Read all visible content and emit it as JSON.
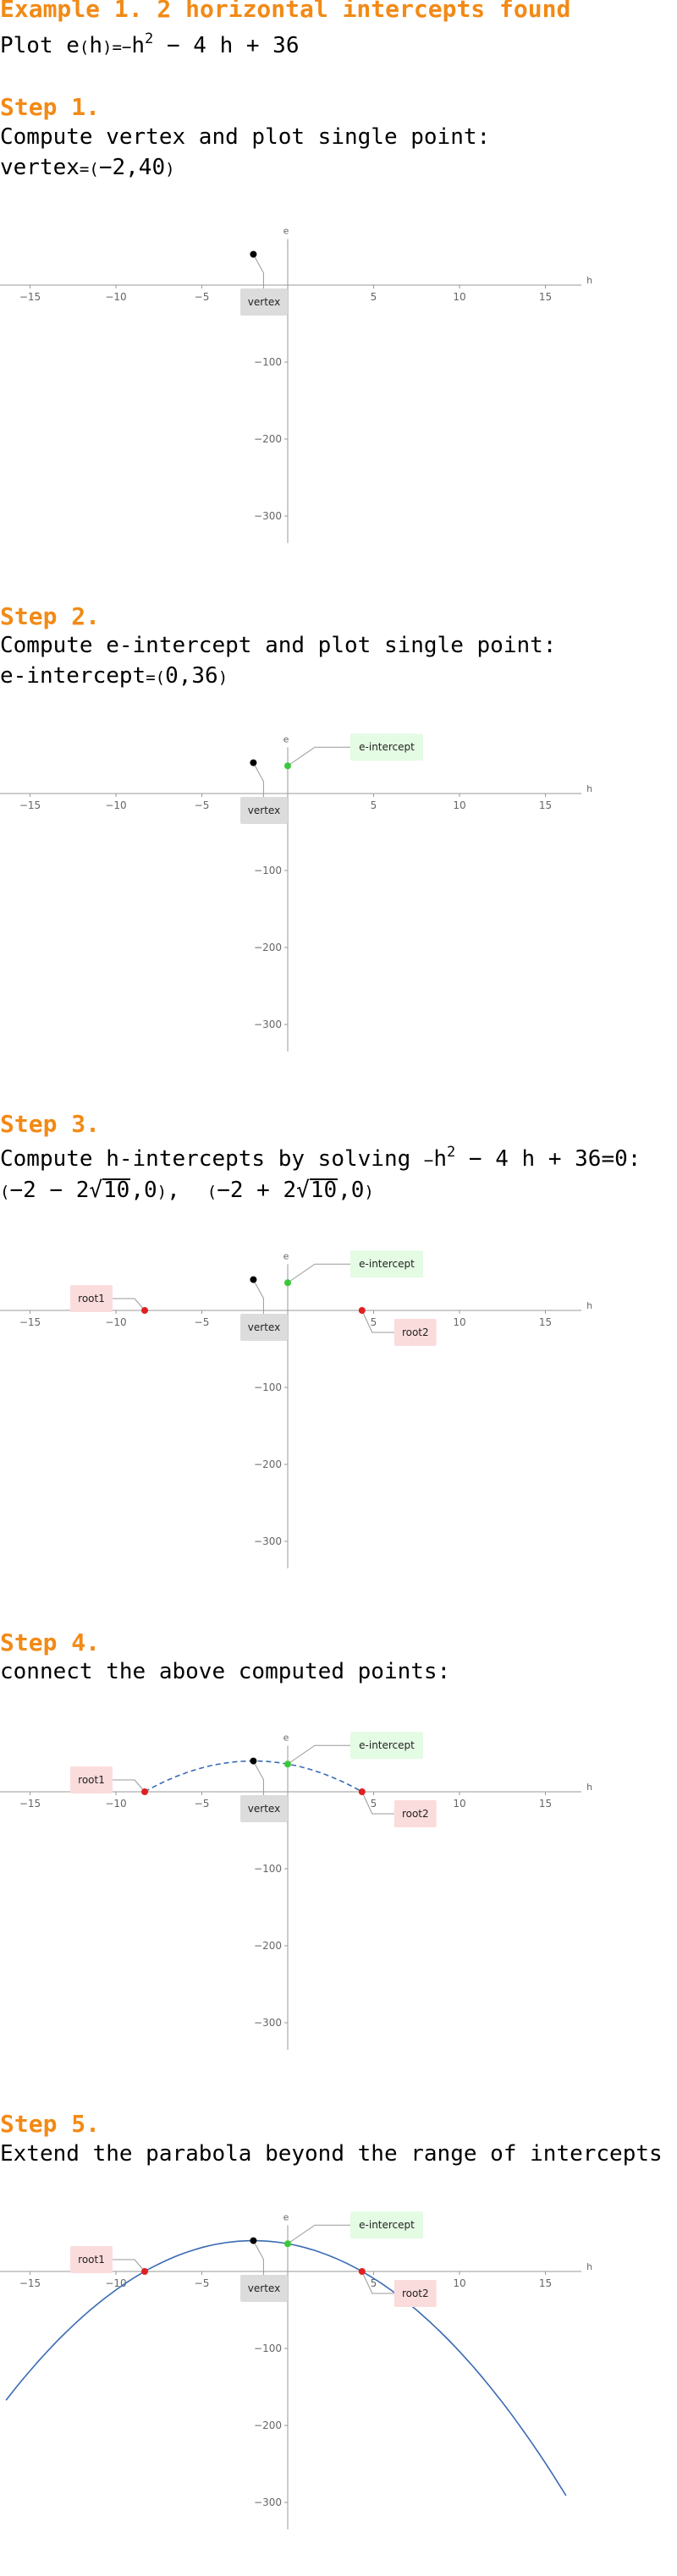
{
  "header": {
    "title": "Example 1. 2 horizontal intercepts found",
    "plot_prefix": "Plot e",
    "plot_lp": "(",
    "plot_arg": "h",
    "plot_rp": ")",
    "plot_eq": "=",
    "plot_minus": "−",
    "plot_h": "h",
    "plot_exp": "2",
    "plot_rest": " − 4 h + 36"
  },
  "steps": [
    {
      "title": "Step 1.",
      "line1": "Compute vertex and plot single point:",
      "line2_label": "vertex",
      "line2_eq": "=",
      "line2_lp": "(",
      "line2_val": "−2,40",
      "line2_rp": ")"
    },
    {
      "title": "Step 2.",
      "line1": "Compute e-intercept and plot single point:",
      "line2_label": "e-intercept",
      "line2_eq": "=",
      "line2_lp": "(",
      "line2_val": "0,36",
      "line2_rp": ")"
    },
    {
      "title": "Step 3.",
      "line1_a": "Compute h-intercepts by solving ",
      "line1_minus": "−",
      "line1_h": "h",
      "line1_exp": "2",
      "line1_b": " − 4 h + 36=0:",
      "root1_open": "(",
      "root1_pre": "−2 − 2",
      "root1_sqrt": "√",
      "root1_rad": "10",
      "root1_post": ",0",
      "root1_close": ")",
      "sep": ",",
      "root2_open": "(",
      "root2_pre": "−2 + 2",
      "root2_sqrt": "√",
      "root2_rad": "10",
      "root2_post": ",0",
      "root2_close": ")"
    },
    {
      "title": "Step 4.",
      "line1": "connect the above computed points:"
    },
    {
      "title": "Step 5.",
      "line1": "Extend the parabola beyond the range of intercepts"
    }
  ],
  "chart_data": [
    {
      "type": "scatter",
      "xlabel": "h",
      "ylabel": "e",
      "xlim": [
        -17,
        17
      ],
      "ylim": [
        -335,
        60
      ],
      "x_ticks": [
        -15,
        -10,
        -5,
        5,
        10,
        15
      ],
      "y_ticks": [
        -100,
        -200,
        -300
      ],
      "tick_labels_x": [
        "−15",
        "−10",
        "−5",
        "5",
        "10",
        "15"
      ],
      "tick_labels_y": [
        "−100",
        "−200",
        "−300"
      ],
      "grid": false,
      "points": [
        {
          "x": -2,
          "y": 40,
          "label": "vertex",
          "color": "#000000"
        }
      ],
      "curve": "none"
    },
    {
      "type": "scatter",
      "xlabel": "h",
      "ylabel": "e",
      "xlim": [
        -17,
        17
      ],
      "ylim": [
        -335,
        60
      ],
      "x_ticks": [
        -15,
        -10,
        -5,
        5,
        10,
        15
      ],
      "y_ticks": [
        -100,
        -200,
        -300
      ],
      "tick_labels_x": [
        "−15",
        "−10",
        "−5",
        "5",
        "10",
        "15"
      ],
      "tick_labels_y": [
        "−100",
        "−200",
        "−300"
      ],
      "grid": false,
      "points": [
        {
          "x": -2,
          "y": 40,
          "label": "vertex",
          "color": "#000000"
        },
        {
          "x": 0,
          "y": 36,
          "label": "e-intercept",
          "color": "#3cc83c"
        }
      ],
      "curve": "none"
    },
    {
      "type": "scatter",
      "xlabel": "h",
      "ylabel": "e",
      "xlim": [
        -17,
        17
      ],
      "ylim": [
        -335,
        60
      ],
      "x_ticks": [
        -15,
        -10,
        -5,
        5,
        10,
        15
      ],
      "y_ticks": [
        -100,
        -200,
        -300
      ],
      "tick_labels_x": [
        "−15",
        "−10",
        "−5",
        "5",
        "10",
        "15"
      ],
      "tick_labels_y": [
        "−100",
        "−200",
        "−300"
      ],
      "grid": false,
      "points": [
        {
          "x": -2,
          "y": 40,
          "label": "vertex",
          "color": "#000000"
        },
        {
          "x": 0,
          "y": 36,
          "label": "e-intercept",
          "color": "#3cc83c"
        },
        {
          "x": -8.3246,
          "y": 0,
          "label": "root1",
          "color": "#e02020"
        },
        {
          "x": 4.3246,
          "y": 0,
          "label": "root2",
          "color": "#e02020"
        }
      ],
      "curve": "none"
    },
    {
      "type": "line",
      "xlabel": "h",
      "ylabel": "e",
      "xlim": [
        -17,
        17
      ],
      "ylim": [
        -335,
        60
      ],
      "x_ticks": [
        -15,
        -10,
        -5,
        5,
        10,
        15
      ],
      "y_ticks": [
        -100,
        -200,
        -300
      ],
      "tick_labels_x": [
        "−15",
        "−10",
        "−5",
        "5",
        "10",
        "15"
      ],
      "tick_labels_y": [
        "−100",
        "−200",
        "−300"
      ],
      "grid": false,
      "points": [
        {
          "x": -2,
          "y": 40,
          "label": "vertex",
          "color": "#000000"
        },
        {
          "x": 0,
          "y": 36,
          "label": "e-intercept",
          "color": "#3cc83c"
        },
        {
          "x": -8.3246,
          "y": 0,
          "label": "root1",
          "color": "#e02020"
        },
        {
          "x": 4.3246,
          "y": 0,
          "label": "root2",
          "color": "#e02020"
        }
      ],
      "curve": "dashed",
      "curve_domain": [
        -8.3246,
        4.3246
      ],
      "curve_color": "#3a6bb5",
      "function": {
        "a": -1,
        "b": -4,
        "c": 36
      }
    },
    {
      "type": "line",
      "xlabel": "h",
      "ylabel": "e",
      "xlim": [
        -17,
        17
      ],
      "ylim": [
        -335,
        60
      ],
      "x_ticks": [
        -15,
        -10,
        -5,
        5,
        10,
        15
      ],
      "y_ticks": [
        -100,
        -200,
        -300
      ],
      "tick_labels_x": [
        "−15",
        "−10",
        "−5",
        "5",
        "10",
        "15"
      ],
      "tick_labels_y": [
        "−100",
        "−200",
        "−300"
      ],
      "grid": false,
      "points": [
        {
          "x": -2,
          "y": 40,
          "label": "vertex",
          "color": "#000000"
        },
        {
          "x": 0,
          "y": 36,
          "label": "e-intercept",
          "color": "#3cc83c"
        },
        {
          "x": -8.3246,
          "y": 0,
          "label": "root1",
          "color": "#e02020"
        },
        {
          "x": 4.3246,
          "y": 0,
          "label": "root2",
          "color": "#e02020"
        }
      ],
      "curve": "solid",
      "curve_domain": [
        -16.4,
        16.2
      ],
      "curve_color": "#3a6bb5",
      "function": {
        "a": -1,
        "b": -4,
        "c": 36
      }
    }
  ]
}
